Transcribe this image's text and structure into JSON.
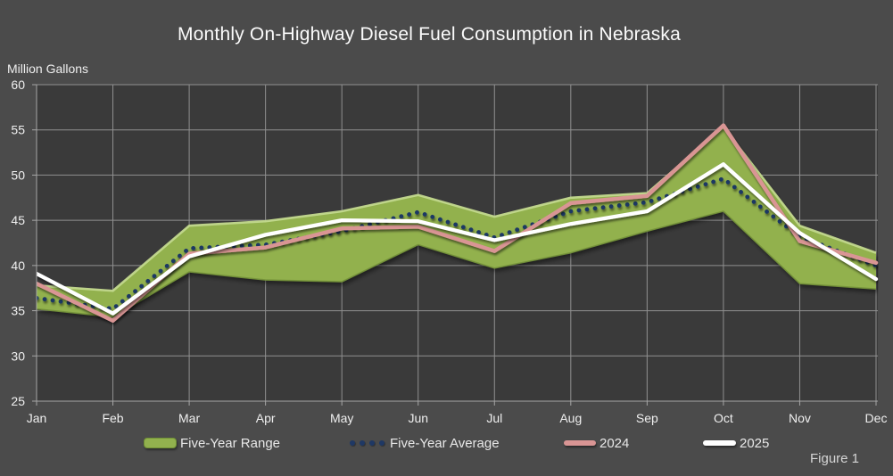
{
  "title": "Monthly On-Highway Diesel Fuel Consumption in Nebraska",
  "y_axis_title": "Million Gallons",
  "figure_label": "Figure 1",
  "legend": {
    "items": [
      {
        "label": "Five-Year Range",
        "swatch": "band-swatch"
      },
      {
        "label": "Five-Year Average",
        "swatch": "dots-swatch"
      },
      {
        "label": "2024",
        "swatch": "line-swatch"
      },
      {
        "label": "2025",
        "swatch": "line-swatch"
      }
    ]
  },
  "colors": {
    "background": "#4b4b4b",
    "plot_background": "#3a3a3a",
    "gridline": "#909090",
    "axis": "#a6a6a6",
    "tick_text": "#efefef",
    "title_text": "#fbfbfb",
    "legend_text": "#e8e8e8",
    "figure_text": "#d6d6d6",
    "range_fill": "#92b14e",
    "range_edge_light": "#c3d98e",
    "range_edge_dark": "#74923a",
    "average": "#1f3864",
    "y2024": "#d99594",
    "y2025": "#ffffff"
  },
  "chart_data": {
    "type": "area",
    "title": "Monthly On-Highway Diesel Fuel Consumption in Nebraska",
    "xlabel": "",
    "ylabel": "Million Gallons",
    "categories": [
      "Jan",
      "Feb",
      "Mar",
      "Apr",
      "May",
      "Jun",
      "Jul",
      "Aug",
      "Sep",
      "Oct",
      "Nov",
      "Dec"
    ],
    "series": [
      {
        "name": "Five-Year Range",
        "type": "band",
        "high": [
          37.8,
          37.2,
          44.4,
          44.9,
          46.0,
          47.8,
          45.4,
          47.5,
          48.0,
          55.3,
          44.4,
          41.4
        ],
        "low": [
          35.2,
          34.3,
          39.3,
          38.4,
          38.2,
          42.3,
          39.7,
          41.4,
          43.8,
          46.0,
          38.0,
          37.4
        ]
      },
      {
        "name": "Five-Year Average",
        "type": "line",
        "style": "dotted",
        "values": [
          36.4,
          35.2,
          41.9,
          42.3,
          43.8,
          45.9,
          43.1,
          46.0,
          47.0,
          49.6,
          43.2,
          40.0
        ]
      },
      {
        "name": "2024",
        "type": "line",
        "style": "solid",
        "values": [
          38.0,
          33.9,
          41.3,
          42.0,
          44.1,
          44.3,
          41.6,
          46.9,
          47.7,
          55.5,
          42.7,
          40.3
        ]
      },
      {
        "name": "2025",
        "type": "line",
        "style": "solid",
        "values": [
          39.1,
          34.7,
          41.0,
          43.4,
          45.0,
          44.9,
          42.8,
          44.6,
          46.0,
          51.2,
          43.6,
          38.5
        ]
      }
    ],
    "ylim": [
      25,
      60
    ],
    "ytick_step": 5,
    "yticks": [
      25,
      30,
      35,
      40,
      45,
      50,
      55,
      60
    ],
    "grid": true,
    "legend_position": "bottom",
    "annotations": [
      "Figure 1"
    ]
  }
}
